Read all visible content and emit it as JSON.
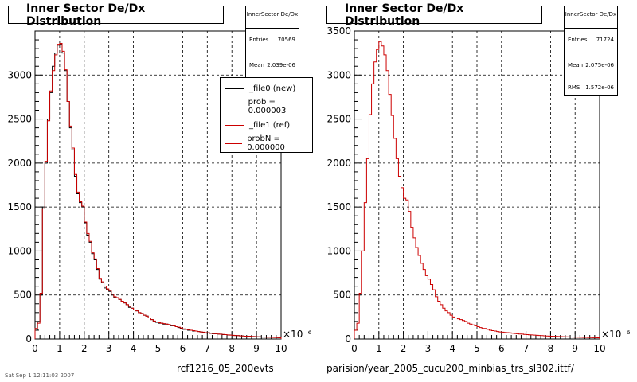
{
  "chart_data": [
    {
      "type": "histogram",
      "title": "Inner Sector De/Dx Distribution",
      "xlabel": "rcf1216_05_200evts",
      "x_exponent": "×10⁻⁶",
      "xlim": [
        0,
        10
      ],
      "ylim": [
        0,
        3500
      ],
      "xticks": [
        "0",
        "1",
        "2",
        "3",
        "4",
        "5",
        "6",
        "7",
        "8",
        "9",
        "10"
      ],
      "yticks": [
        "0",
        "500",
        "1000",
        "1500",
        "2000",
        "2500",
        "3000"
      ],
      "grid": true,
      "stats": {
        "name": "InnerSector De/Dx",
        "rows": [
          {
            "label": "Entries",
            "value": "70569"
          },
          {
            "label": "Mean",
            "value": "2.039e-06"
          }
        ]
      },
      "legend": [
        {
          "label": "_file0 (new)",
          "color": "#000000"
        },
        {
          "label": "prob = 0.000003",
          "color": "#000000"
        },
        {
          "label": "_file1 (ref)",
          "color": "#cc0000"
        },
        {
          "label": "probN = 0.000000",
          "color": "#cc0000"
        }
      ],
      "series": [
        {
          "name": "_file0 (new)",
          "color": "#000000"
        },
        {
          "name": "_file1 (ref)",
          "color": "#cc0000"
        }
      ],
      "x": [
        0.05,
        0.15,
        0.25,
        0.35,
        0.45,
        0.55,
        0.65,
        0.75,
        0.85,
        0.95,
        1.05,
        1.15,
        1.25,
        1.35,
        1.45,
        1.55,
        1.65,
        1.75,
        1.85,
        1.95,
        2.05,
        2.15,
        2.25,
        2.35,
        2.45,
        2.55,
        2.65,
        2.75,
        2.85,
        2.95,
        3.05,
        3.15,
        3.25,
        3.35,
        3.45,
        3.55,
        3.65,
        3.75,
        3.85,
        3.95,
        4.05,
        4.15,
        4.25,
        4.35,
        4.45,
        4.55,
        4.65,
        4.75,
        4.85,
        4.95,
        5.05,
        5.15,
        5.25,
        5.35,
        5.45,
        5.55,
        5.65,
        5.75,
        5.85,
        5.95,
        6.05,
        6.15,
        6.25,
        6.35,
        6.45,
        6.55,
        6.65,
        6.75,
        6.85,
        6.95,
        7.05,
        7.15,
        7.25,
        7.35,
        7.45,
        7.55,
        7.65,
        7.75,
        7.85,
        7.95,
        8.05,
        8.15,
        8.25,
        8.35,
        8.45,
        8.55,
        8.65,
        8.75,
        8.85,
        8.95,
        9.05,
        9.15,
        9.25,
        9.35,
        9.45,
        9.55,
        9.65,
        9.75,
        9.85,
        9.95
      ],
      "values_new": [
        100,
        200,
        500,
        1500,
        2000,
        2500,
        2800,
        3100,
        3250,
        3340,
        3350,
        3250,
        3050,
        2700,
        2400,
        2150,
        1850,
        1650,
        1550,
        1500,
        1320,
        1180,
        1100,
        970,
        900,
        790,
        680,
        640,
        580,
        560,
        540,
        500,
        470,
        470,
        450,
        420,
        410,
        390,
        360,
        350,
        330,
        320,
        300,
        290,
        270,
        260,
        240,
        220,
        200,
        190,
        180,
        180,
        170,
        170,
        160,
        150,
        150,
        140,
        130,
        120,
        110,
        110,
        100,
        100,
        90,
        90,
        85,
        80,
        75,
        70,
        70,
        65,
        60,
        60,
        55,
        55,
        50,
        50,
        45,
        45,
        40,
        40,
        38,
        35,
        35,
        32,
        30,
        30,
        28,
        28,
        25,
        25,
        22,
        22,
        20,
        20,
        18,
        18,
        16,
        15
      ],
      "values_ref": [
        120,
        180,
        520,
        1480,
        2020,
        2480,
        2820,
        3050,
        3230,
        3350,
        3360,
        3270,
        3060,
        2700,
        2420,
        2170,
        1870,
        1670,
        1560,
        1510,
        1330,
        1200,
        1110,
        980,
        910,
        800,
        690,
        650,
        600,
        570,
        550,
        510,
        480,
        470,
        450,
        430,
        410,
        390,
        370,
        350,
        330,
        320,
        300,
        290,
        270,
        260,
        240,
        220,
        205,
        195,
        185,
        180,
        175,
        170,
        165,
        155,
        150,
        140,
        135,
        125,
        115,
        110,
        105,
        100,
        95,
        90,
        85,
        80,
        78,
        72,
        70,
        66,
        62,
        60,
        56,
        54,
        52,
        50,
        46,
        44,
        42,
        40,
        38,
        36,
        34,
        32,
        30,
        30,
        28,
        27,
        25,
        24,
        23,
        22,
        20,
        20,
        18,
        17,
        16,
        15
      ]
    },
    {
      "type": "histogram",
      "title": "Inner Sector De/Dx Distribution",
      "xlabel": "parision/year_2005_cucu200_minbias_trs_sl302.ittf/",
      "x_exponent": "×10⁻⁶",
      "xlim": [
        0,
        10
      ],
      "ylim": [
        0,
        3500
      ],
      "xticks": [
        "0",
        "1",
        "2",
        "3",
        "4",
        "5",
        "6",
        "7",
        "8",
        "9",
        "10"
      ],
      "yticks": [
        "0",
        "500",
        "1000",
        "1500",
        "2000",
        "2500",
        "3000",
        "3500"
      ],
      "grid": true,
      "stats": {
        "name": "InnerSector De/Dx",
        "rows": [
          {
            "label": "Entries",
            "value": "71724"
          },
          {
            "label": "Mean",
            "value": "2.075e-06"
          },
          {
            "label": "RMS",
            "value": "1.572e-06"
          }
        ]
      },
      "series": [
        {
          "name": "",
          "color": "#cc0000"
        }
      ],
      "x": [
        0.05,
        0.15,
        0.25,
        0.35,
        0.45,
        0.55,
        0.65,
        0.75,
        0.85,
        0.95,
        1.05,
        1.15,
        1.25,
        1.35,
        1.45,
        1.55,
        1.65,
        1.75,
        1.85,
        1.95,
        2.05,
        2.15,
        2.25,
        2.35,
        2.45,
        2.55,
        2.65,
        2.75,
        2.85,
        2.95,
        3.05,
        3.15,
        3.25,
        3.35,
        3.45,
        3.55,
        3.65,
        3.75,
        3.85,
        3.95,
        4.05,
        4.15,
        4.25,
        4.35,
        4.45,
        4.55,
        4.65,
        4.75,
        4.85,
        4.95,
        5.05,
        5.15,
        5.25,
        5.35,
        5.45,
        5.55,
        5.65,
        5.75,
        5.85,
        5.95,
        6.05,
        6.15,
        6.25,
        6.35,
        6.45,
        6.55,
        6.65,
        6.75,
        6.85,
        6.95,
        7.05,
        7.15,
        7.25,
        7.35,
        7.45,
        7.55,
        7.65,
        7.75,
        7.85,
        7.95,
        8.05,
        8.15,
        8.25,
        8.35,
        8.45,
        8.55,
        8.65,
        8.75,
        8.85,
        8.95,
        9.05,
        9.15,
        9.25,
        9.35,
        9.45,
        9.55,
        9.65,
        9.75,
        9.85,
        9.95
      ],
      "values": [
        100,
        180,
        520,
        1000,
        1550,
        2050,
        2550,
        2900,
        3150,
        3290,
        3380,
        3330,
        3230,
        3050,
        2780,
        2540,
        2280,
        2050,
        1850,
        1720,
        1600,
        1580,
        1450,
        1270,
        1150,
        1040,
        950,
        860,
        790,
        720,
        680,
        620,
        560,
        480,
        430,
        390,
        350,
        320,
        300,
        270,
        250,
        240,
        230,
        220,
        210,
        200,
        180,
        170,
        160,
        150,
        140,
        130,
        120,
        120,
        110,
        100,
        95,
        90,
        85,
        80,
        78,
        75,
        72,
        70,
        66,
        62,
        60,
        57,
        55,
        52,
        50,
        48,
        46,
        44,
        42,
        40,
        38,
        36,
        34,
        33,
        32,
        30,
        29,
        28,
        27,
        26,
        25,
        24,
        23,
        22,
        21,
        20,
        19,
        18,
        18,
        17,
        16,
        15,
        15,
        14
      ]
    }
  ],
  "footnote": "Sat Sep 1 12:11:03 2007"
}
